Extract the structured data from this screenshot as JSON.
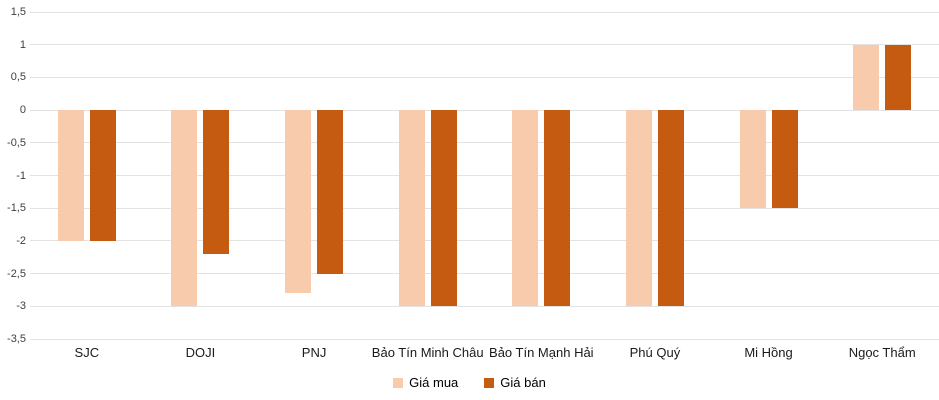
{
  "chart_data": {
    "type": "bar",
    "title": "",
    "xlabel": "",
    "ylabel": "",
    "categories": [
      "SJC",
      "DOJI",
      "PNJ",
      "Bảo Tín Minh Châu",
      "Bảo Tín Mạnh Hải",
      "Phú Quý",
      "Mi Hồng",
      "Ngọc Thẩm"
    ],
    "series": [
      {
        "name": "Giá mua",
        "color": "#F7CBAC",
        "values": [
          -2,
          -3,
          -2.8,
          -3,
          -3,
          -3,
          -1.5,
          1
        ]
      },
      {
        "name": "Giá bán",
        "color": "#C55A11",
        "values": [
          -2,
          -2.2,
          -2.5,
          -3,
          -3,
          -3,
          -1.5,
          1
        ]
      }
    ],
    "ylim": [
      -3.5,
      1.5
    ],
    "ytick_step": 0.5,
    "ytick_labels": [
      "1,5",
      "1",
      "0,5",
      "0",
      "-0,5",
      "-1",
      "-1,5",
      "-2",
      "-2,5",
      "-3",
      "-3,5"
    ],
    "grid": true,
    "legend_position": "bottom"
  },
  "colors": {
    "gridline": "#E3E3E3",
    "tick_text": "#404040",
    "category_text": "#1a1a1a"
  }
}
